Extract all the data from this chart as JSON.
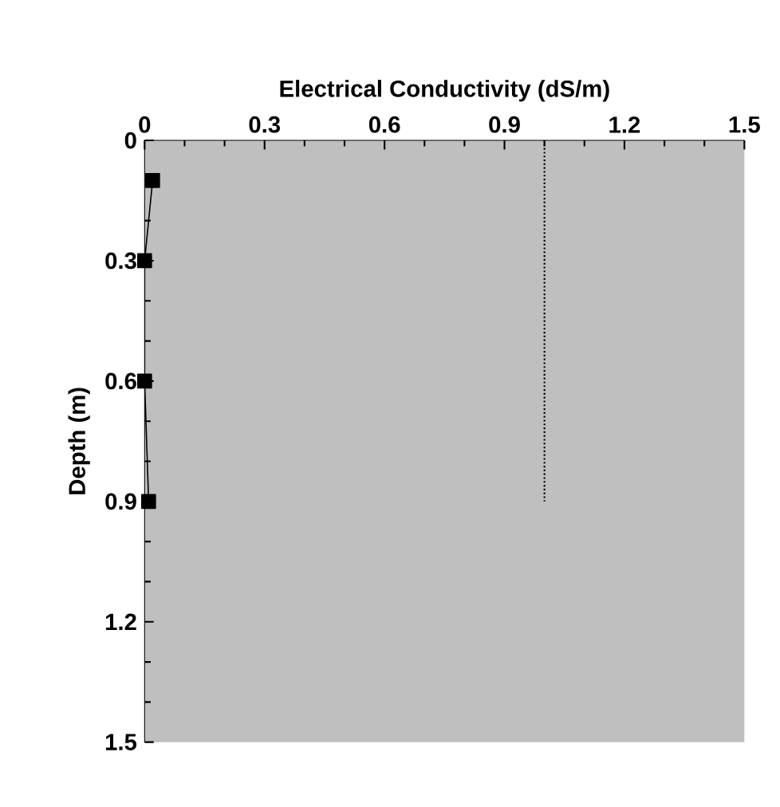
{
  "chart_data": {
    "type": "line",
    "xlabel": "Electrical Conductivity (dS/m)",
    "ylabel": "Depth (m)",
    "xlim": [
      0,
      1.5
    ],
    "xticks": [
      {
        "value": 0,
        "label": "0"
      },
      0.3,
      0.6,
      0.9,
      1.2,
      1.5
    ],
    "ylim": [
      1.5,
      0
    ],
    "yticks": [
      {
        "value": 0,
        "label": "0"
      },
      0.3,
      0.6,
      0.9,
      1.2,
      1.5
    ],
    "series": [
      {
        "color": "#000000",
        "marker": "square",
        "line_style": "solid",
        "x": [
          0.02,
          0,
          0,
          0.01
        ],
        "values": [
          0.1,
          0.3,
          0.6,
          0.9
        ]
      },
      {
        "color": "#000000",
        "marker": "none",
        "line_style": "dotted",
        "x": [
          1.0,
          1.0
        ],
        "values": [
          0,
          0.9
        ]
      }
    ]
  }
}
